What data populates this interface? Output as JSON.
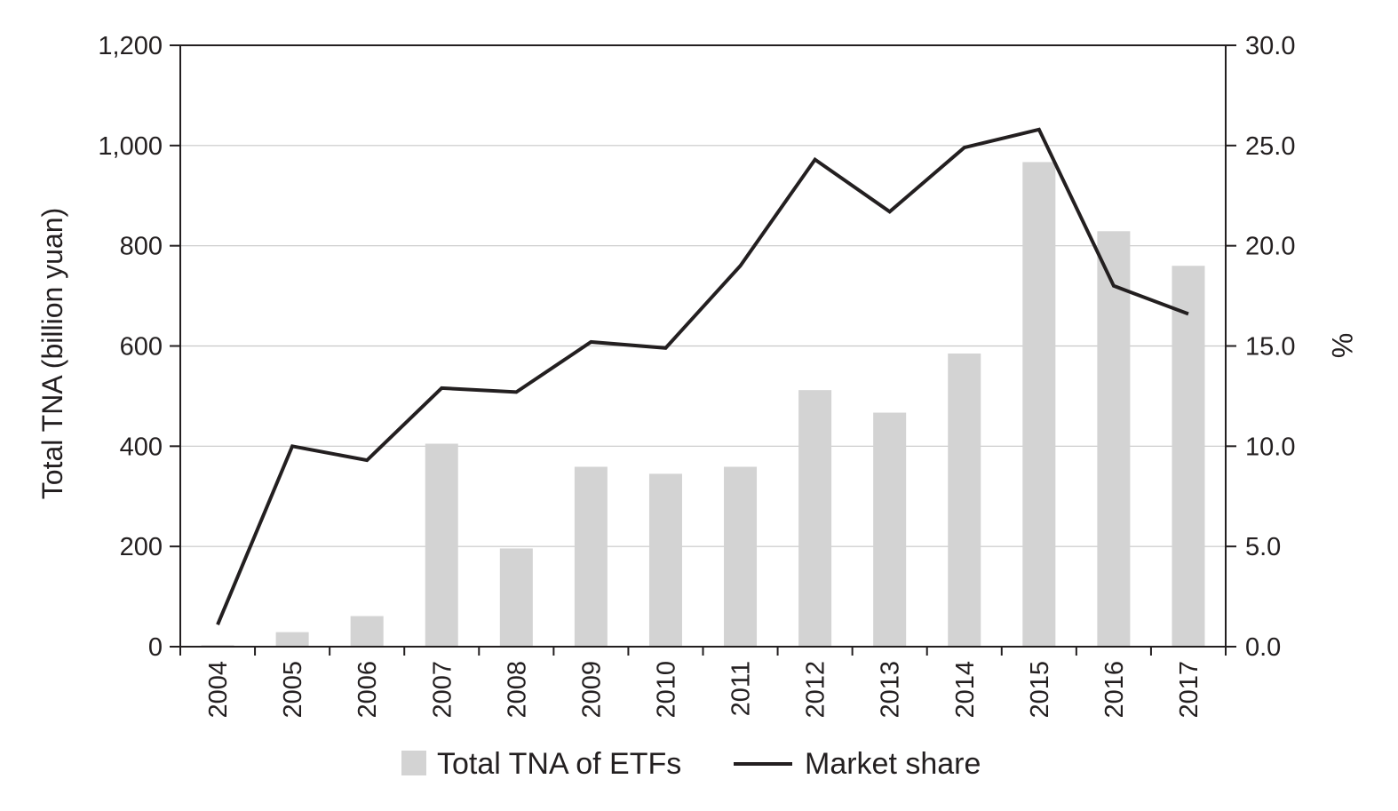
{
  "chart_data": {
    "type": "bar",
    "title": "",
    "xlabel": "",
    "ylabel": "Total TNA (billion yuan)",
    "ylabel_right": "%",
    "categories": [
      "2004",
      "2005",
      "2006",
      "2007",
      "2008",
      "2009",
      "2010",
      "2011",
      "2012",
      "2013",
      "2014",
      "2015",
      "2016",
      "2017"
    ],
    "ylim": [
      0,
      1200
    ],
    "y_ticks": [
      "0",
      "200",
      "400",
      "600",
      "800",
      "1,000",
      "1,200"
    ],
    "y2lim": [
      0,
      30
    ],
    "y2_ticks": [
      "0.0",
      "5.0",
      "10.0",
      "15.0",
      "20.0",
      "25.0",
      "30.0"
    ],
    "grid": true,
    "legend_position": "bottom",
    "series": [
      {
        "name": "Total TNA of ETFs",
        "type": "bar",
        "axis": "left",
        "color": "#d3d3d3",
        "values": [
          3,
          29,
          61,
          405,
          196,
          359,
          345,
          359,
          512,
          467,
          585,
          967,
          829,
          760
        ]
      },
      {
        "name": "Market share",
        "type": "line",
        "axis": "right",
        "color": "#231f20",
        "values": [
          1.1,
          10.0,
          9.3,
          12.9,
          12.7,
          15.2,
          14.9,
          19.0,
          24.3,
          21.7,
          24.9,
          25.8,
          18.0,
          16.6
        ]
      }
    ]
  }
}
